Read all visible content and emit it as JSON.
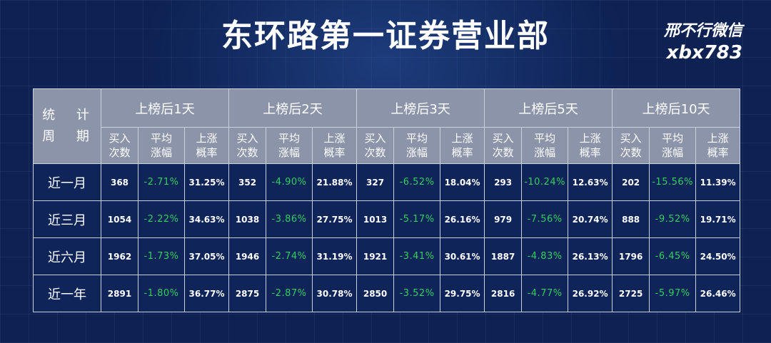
{
  "title": "东环路第一证券营业部",
  "watermark": {
    "line1": "邢不行微信",
    "line2": "xbx783"
  },
  "table": {
    "period_header": [
      "统 计",
      "周 期"
    ],
    "groups": [
      "上榜后1天",
      "上榜后2天",
      "上榜后3天",
      "上榜后5天",
      "上榜后10天"
    ],
    "sub_headers": [
      [
        "买入",
        "次数"
      ],
      [
        "平均",
        "涨幅"
      ],
      [
        "上涨",
        "概率"
      ]
    ],
    "rows": [
      {
        "period": "近一月",
        "cells": [
          [
            "368",
            "-2.71%",
            "31.25%"
          ],
          [
            "352",
            "-4.90%",
            "21.88%"
          ],
          [
            "327",
            "-6.52%",
            "18.04%"
          ],
          [
            "293",
            "-10.24%",
            "12.63%"
          ],
          [
            "202",
            "-15.56%",
            "11.39%"
          ]
        ]
      },
      {
        "period": "近三月",
        "cells": [
          [
            "1054",
            "-2.22%",
            "34.63%"
          ],
          [
            "1038",
            "-3.86%",
            "27.75%"
          ],
          [
            "1013",
            "-5.17%",
            "26.16%"
          ],
          [
            "979",
            "-7.56%",
            "20.74%"
          ],
          [
            "888",
            "-9.52%",
            "19.71%"
          ]
        ]
      },
      {
        "period": "近六月",
        "cells": [
          [
            "1962",
            "-1.73%",
            "37.05%"
          ],
          [
            "1946",
            "-2.74%",
            "31.19%"
          ],
          [
            "1921",
            "-3.41%",
            "30.61%"
          ],
          [
            "1887",
            "-4.83%",
            "26.13%"
          ],
          [
            "1796",
            "-6.45%",
            "24.50%"
          ]
        ]
      },
      {
        "period": "近一年",
        "cells": [
          [
            "2891",
            "-1.80%",
            "36.77%"
          ],
          [
            "2875",
            "-2.87%",
            "30.78%"
          ],
          [
            "2850",
            "-3.52%",
            "29.75%"
          ],
          [
            "2816",
            "-4.77%",
            "26.92%"
          ],
          [
            "2725",
            "-5.97%",
            "26.46%"
          ]
        ]
      }
    ],
    "colors": {
      "header_bg": "#8b94a9",
      "body_bg": "#0f2458",
      "negative": "#2fd15a",
      "page_bg": "#0d2152"
    }
  }
}
